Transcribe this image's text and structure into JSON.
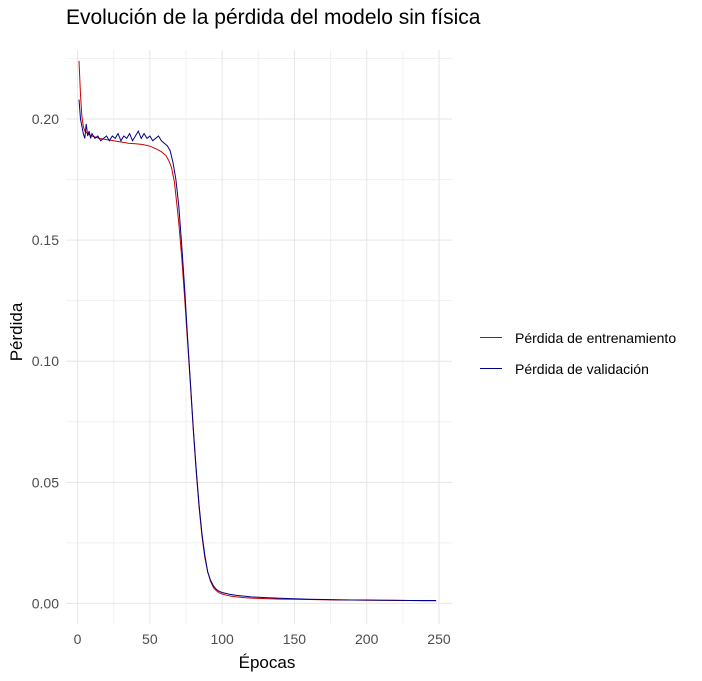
{
  "chart_data": {
    "type": "line",
    "title": "Evolución de la pérdida del modelo sin física",
    "xlabel": "Épocas",
    "ylabel": "Pérdida",
    "xlim": [
      -8,
      259
    ],
    "ylim": [
      -0.0085,
      0.2285
    ],
    "x_ticks": [
      0,
      50,
      100,
      150,
      200,
      250
    ],
    "y_ticks": [
      0.0,
      0.05,
      0.1,
      0.15,
      0.2
    ],
    "x_tick_labels": [
      "0",
      "50",
      "100",
      "150",
      "200",
      "250"
    ],
    "y_tick_labels": [
      "0.00",
      "0.05",
      "0.10",
      "0.15",
      "0.20"
    ],
    "grid": true,
    "legend_position": "right",
    "series": [
      {
        "name": "Pérdida de entrenamiento",
        "color": "#cc0000",
        "x": [
          1,
          2,
          3,
          4,
          5,
          7,
          10,
          15,
          20,
          25,
          30,
          35,
          40,
          45,
          50,
          55,
          58,
          61,
          63,
          65,
          67,
          69,
          70,
          72,
          74,
          76,
          78,
          80,
          82,
          84,
          86,
          88,
          90,
          92,
          94,
          96,
          98,
          100,
          103,
          106,
          110,
          115,
          120,
          130,
          140,
          150,
          160,
          170,
          180,
          190,
          200,
          210,
          220,
          230,
          240,
          248
        ],
        "y": [
          0.224,
          0.21,
          0.201,
          0.197,
          0.195,
          0.194,
          0.193,
          0.192,
          0.1915,
          0.191,
          0.1905,
          0.19,
          0.1898,
          0.1895,
          0.1888,
          0.1875,
          0.1865,
          0.185,
          0.183,
          0.18,
          0.174,
          0.163,
          0.157,
          0.143,
          0.127,
          0.109,
          0.091,
          0.072,
          0.055,
          0.04,
          0.028,
          0.019,
          0.013,
          0.009,
          0.0065,
          0.0052,
          0.0044,
          0.0039,
          0.0034,
          0.003,
          0.0027,
          0.0024,
          0.0022,
          0.002,
          0.0018,
          0.0017,
          0.0016,
          0.0015,
          0.0014,
          0.0014,
          0.0013,
          0.0013,
          0.0012,
          0.0012,
          0.0011,
          0.0011
        ]
      },
      {
        "name": "Pérdida de validación",
        "color": "#00008b",
        "x": [
          1,
          2,
          3,
          4,
          5,
          6,
          7,
          8,
          9,
          10,
          12,
          14,
          16,
          18,
          20,
          22,
          24,
          26,
          28,
          30,
          32,
          34,
          36,
          38,
          40,
          42,
          44,
          46,
          48,
          50,
          52,
          54,
          56,
          58,
          60,
          62,
          64,
          66,
          68,
          70,
          72,
          74,
          76,
          78,
          80,
          82,
          84,
          86,
          88,
          90,
          92,
          94,
          96,
          98,
          100,
          105,
          110,
          115,
          120,
          130,
          140,
          150,
          160,
          170,
          180,
          190,
          200,
          210,
          220,
          230,
          240,
          248
        ],
        "y": [
          0.208,
          0.2,
          0.197,
          0.194,
          0.192,
          0.198,
          0.193,
          0.195,
          0.192,
          0.194,
          0.192,
          0.193,
          0.191,
          0.192,
          0.193,
          0.191,
          0.193,
          0.192,
          0.194,
          0.191,
          0.193,
          0.192,
          0.194,
          0.191,
          0.193,
          0.195,
          0.192,
          0.194,
          0.192,
          0.193,
          0.191,
          0.192,
          0.193,
          0.191,
          0.19,
          0.189,
          0.187,
          0.182,
          0.175,
          0.164,
          0.148,
          0.131,
          0.111,
          0.092,
          0.073,
          0.056,
          0.041,
          0.029,
          0.02,
          0.013,
          0.0095,
          0.0072,
          0.0058,
          0.005,
          0.0045,
          0.0038,
          0.0033,
          0.003,
          0.0027,
          0.0024,
          0.0021,
          0.0019,
          0.0017,
          0.0016,
          0.0015,
          0.0014,
          0.0014,
          0.0013,
          0.0013,
          0.0012,
          0.0012,
          0.0012
        ]
      }
    ]
  }
}
